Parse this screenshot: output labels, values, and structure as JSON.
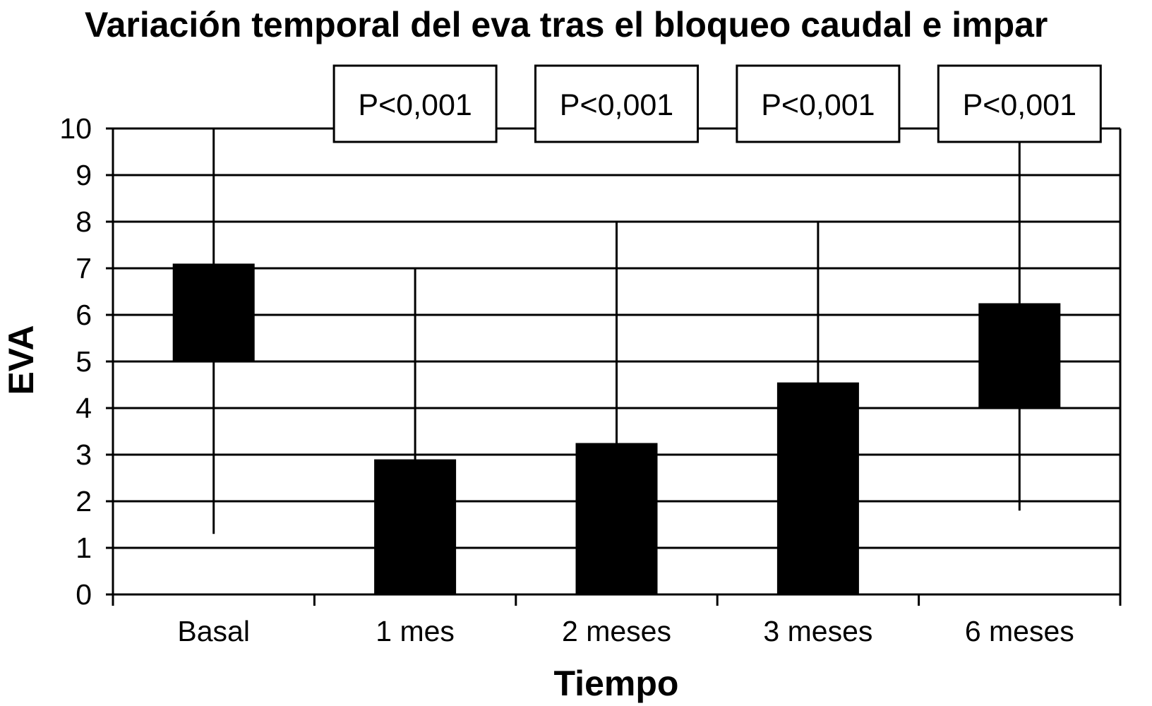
{
  "chart_data": {
    "type": "bar",
    "title": "Variación temporal del eva tras el bloqueo caudal e impar",
    "xlabel": "Tiempo",
    "ylabel": "EVA",
    "ylim": [
      0,
      10
    ],
    "yticks": [
      0,
      1,
      2,
      3,
      4,
      5,
      6,
      7,
      8,
      9,
      10
    ],
    "grid": true,
    "categories": [
      "Basal",
      "1 mes",
      "2 meses",
      "3 meses",
      "6 meses"
    ],
    "boxes": [
      {
        "category": "Basal",
        "low": 5.0,
        "high": 7.1
      },
      {
        "category": "1 mes",
        "low": 0.0,
        "high": 2.9
      },
      {
        "category": "2 meses",
        "low": 0.0,
        "high": 3.25
      },
      {
        "category": "3 meses",
        "low": 0.0,
        "high": 4.55
      },
      {
        "category": "6 meses",
        "low": 4.0,
        "high": 6.25
      }
    ],
    "whiskers": [
      {
        "category": "Basal",
        "min": 1.3,
        "max": 10
      },
      {
        "category": "1 mes",
        "min": 0,
        "max": 7
      },
      {
        "category": "2 meses",
        "min": 0,
        "max": 8
      },
      {
        "category": "3 meses",
        "min": 0,
        "max": 8
      },
      {
        "category": "6 meses",
        "min": 1.8,
        "max": 10
      }
    ],
    "annotations": [
      {
        "category": "1 mes",
        "text": "P<0,001"
      },
      {
        "category": "2 meses",
        "text": "P<0,001"
      },
      {
        "category": "3 meses",
        "text": "P<0,001"
      },
      {
        "category": "6 meses",
        "text": "P<0,001"
      }
    ],
    "colors": {
      "bar": "#000000",
      "grid": "#000000",
      "background": "#ffffff"
    }
  }
}
